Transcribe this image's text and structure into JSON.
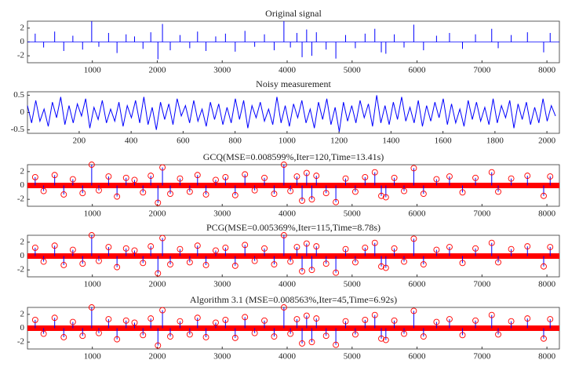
{
  "chart_data": [
    {
      "type": "stem",
      "title": "Original signal",
      "color": "#0000ff",
      "markers": false,
      "xlim": [
        1,
        8192
      ],
      "xticks": [
        1000,
        2000,
        3000,
        4000,
        5000,
        6000,
        7000,
        8000
      ],
      "ylim": [
        -3,
        3
      ],
      "yticks": [
        -2,
        0,
        2
      ],
      "x": [
        120,
        250,
        420,
        560,
        700,
        850,
        990,
        1100,
        1250,
        1380,
        1520,
        1650,
        1780,
        1900,
        2010,
        2080,
        2200,
        2350,
        2500,
        2620,
        2750,
        2900,
        3050,
        3200,
        3350,
        3500,
        3650,
        3800,
        3950,
        4050,
        4150,
        4230,
        4300,
        4380,
        4450,
        4600,
        4750,
        4900,
        5050,
        5200,
        5350,
        5450,
        5520,
        5650,
        5800,
        5950,
        6100,
        6300,
        6500,
        6700,
        6900,
        7150,
        7250,
        7450,
        7700,
        7950,
        8050
      ],
      "values": [
        1.2,
        -0.8,
        1.5,
        -1.3,
        0.9,
        -1.1,
        3.0,
        -0.7,
        1.3,
        -1.6,
        1.1,
        0.8,
        -1.0,
        1.4,
        -2.5,
        2.6,
        -1.2,
        1.0,
        -0.9,
        1.5,
        -1.3,
        0.8,
        1.2,
        -1.4,
        1.6,
        -0.7,
        1.1,
        -1.2,
        3.0,
        -0.8,
        1.3,
        -2.2,
        1.8,
        -2.0,
        1.4,
        -1.1,
        -2.4,
        1.0,
        -0.9,
        1.2,
        1.9,
        -1.5,
        -1.7,
        1.1,
        -0.8,
        2.5,
        -1.2,
        0.9,
        1.3,
        -1.0,
        1.1,
        1.9,
        -0.9,
        1.0,
        1.4,
        -1.5,
        1.3
      ]
    },
    {
      "type": "line",
      "title": "Noisy measurement",
      "color": "#0000ff",
      "xlim": [
        1,
        2048
      ],
      "xticks": [
        200,
        400,
        600,
        800,
        1000,
        1200,
        1400,
        1600,
        1800,
        2000
      ],
      "ylim": [
        -0.6,
        0.6
      ],
      "yticks": [
        -0.5,
        0,
        0.5
      ],
      "x": [
        1,
        17,
        33,
        49,
        65,
        81,
        97,
        113,
        129,
        145,
        161,
        177,
        193,
        209,
        225,
        241,
        257,
        273,
        289,
        305,
        321,
        337,
        353,
        369,
        385,
        401,
        417,
        433,
        449,
        465,
        481,
        497,
        513,
        529,
        545,
        561,
        577,
        593,
        609,
        625,
        641,
        657,
        673,
        689,
        705,
        721,
        737,
        753,
        769,
        785,
        801,
        817,
        833,
        849,
        865,
        881,
        897,
        913,
        929,
        945,
        961,
        977,
        993,
        1009,
        1025,
        1041,
        1057,
        1073,
        1089,
        1105,
        1121,
        1137,
        1153,
        1169,
        1185,
        1201,
        1217,
        1233,
        1249,
        1265,
        1281,
        1297,
        1313,
        1329,
        1345,
        1361,
        1377,
        1393,
        1409,
        1425,
        1441,
        1457,
        1473,
        1489,
        1505,
        1521,
        1537,
        1553,
        1569,
        1585,
        1601,
        1617,
        1633,
        1649,
        1665,
        1681,
        1697,
        1713,
        1729,
        1745,
        1761,
        1777,
        1793,
        1809,
        1825,
        1841,
        1857,
        1873,
        1889,
        1905,
        1921,
        1937,
        1953,
        1969,
        1985,
        2001,
        2017,
        2033
      ],
      "values": [
        0.2,
        -0.3,
        0.35,
        -0.25,
        0.1,
        -0.4,
        0.3,
        -0.15,
        0.45,
        -0.35,
        0.2,
        -0.3,
        0.25,
        -0.1,
        0.4,
        -0.45,
        0.15,
        -0.2,
        0.35,
        -0.3,
        0.1,
        -0.25,
        0.3,
        -0.4,
        0.2,
        -0.15,
        0.35,
        -0.3,
        0.45,
        -0.35,
        0.15,
        -0.5,
        0.3,
        -0.2,
        0.25,
        -0.35,
        0.4,
        -0.1,
        0.2,
        -0.3,
        0.35,
        -0.25,
        0.1,
        -0.4,
        0.3,
        -0.2,
        0.25,
        -0.35,
        0.15,
        -0.3,
        0.4,
        -0.2,
        0.35,
        -0.45,
        0.2,
        -0.15,
        0.3,
        -0.25,
        0.1,
        -0.35,
        0.45,
        -0.3,
        0.2,
        -0.4,
        0.25,
        -0.15,
        0.35,
        -0.3,
        0.1,
        -0.45,
        0.3,
        -0.2,
        0.4,
        -0.35,
        0.15,
        -0.55,
        0.3,
        -0.25,
        0.2,
        -0.3,
        0.35,
        -0.15,
        0.25,
        -0.4,
        0.5,
        -0.3,
        0.2,
        -0.35,
        0.3,
        -0.2,
        0.45,
        -0.25,
        0.15,
        -0.3,
        0.35,
        -0.4,
        0.2,
        -0.25,
        0.3,
        -0.15,
        0.4,
        -0.35,
        0.25,
        -0.3,
        0.1,
        -0.4,
        0.35,
        -0.2,
        0.3,
        -0.25,
        0.15,
        -0.35,
        0.4,
        -0.3,
        0.2,
        -0.15,
        0.35,
        -0.45,
        0.25,
        -0.2,
        0.3,
        -0.35,
        0.15,
        -0.3,
        0.4,
        -0.25,
        0.2,
        -0.1
      ]
    },
    {
      "type": "stem",
      "title": "GCQ(MSE=0.008599%,Iter=120,Time=13.41s)",
      "color": "#0000ff",
      "marker_color": "#ff0000",
      "markers": true,
      "xlim": [
        1,
        8192
      ],
      "xticks": [
        1000,
        2000,
        3000,
        4000,
        5000,
        6000,
        7000,
        8000
      ],
      "ylim": [
        -3,
        3
      ],
      "yticks": [
        -2,
        0,
        2
      ],
      "x": [
        120,
        250,
        420,
        560,
        700,
        850,
        990,
        1100,
        1250,
        1380,
        1520,
        1650,
        1780,
        1900,
        2010,
        2080,
        2200,
        2350,
        2500,
        2620,
        2750,
        2900,
        3050,
        3200,
        3350,
        3500,
        3650,
        3800,
        3950,
        4050,
        4150,
        4230,
        4300,
        4380,
        4450,
        4600,
        4750,
        4900,
        5050,
        5200,
        5350,
        5450,
        5520,
        5650,
        5800,
        5950,
        6100,
        6300,
        6500,
        6700,
        6900,
        7150,
        7250,
        7450,
        7700,
        7950,
        8050
      ],
      "values": [
        1.2,
        -0.8,
        1.5,
        -1.3,
        0.9,
        -1.1,
        3.0,
        -0.7,
        1.3,
        -1.6,
        1.1,
        0.8,
        -1.0,
        1.4,
        -2.5,
        2.6,
        -1.2,
        1.0,
        -0.9,
        1.5,
        -1.3,
        0.8,
        1.2,
        -1.4,
        1.6,
        -0.7,
        1.1,
        -1.2,
        3.0,
        -0.8,
        1.3,
        -2.2,
        1.8,
        -2.0,
        1.4,
        -1.1,
        -2.4,
        1.0,
        -0.9,
        1.2,
        1.9,
        -1.5,
        -1.7,
        1.1,
        -0.8,
        2.5,
        -1.2,
        0.9,
        1.3,
        -1.0,
        1.1,
        1.9,
        -0.9,
        1.0,
        1.4,
        -1.5,
        1.3
      ]
    },
    {
      "type": "stem",
      "title": "PCG(MSE=0.005369%,Iter=115,Time=8.78s)",
      "color": "#0000ff",
      "marker_color": "#ff0000",
      "markers": true,
      "xlim": [
        1,
        8192
      ],
      "xticks": [
        1000,
        2000,
        3000,
        4000,
        5000,
        6000,
        7000,
        8000
      ],
      "ylim": [
        -3,
        3
      ],
      "yticks": [
        -2,
        0,
        2
      ],
      "x": [
        120,
        250,
        420,
        560,
        700,
        850,
        990,
        1100,
        1250,
        1380,
        1520,
        1650,
        1780,
        1900,
        2010,
        2080,
        2200,
        2350,
        2500,
        2620,
        2750,
        2900,
        3050,
        3200,
        3350,
        3500,
        3650,
        3800,
        3950,
        4050,
        4150,
        4230,
        4300,
        4380,
        4450,
        4600,
        4750,
        4900,
        5050,
        5200,
        5350,
        5450,
        5520,
        5650,
        5800,
        5950,
        6100,
        6300,
        6500,
        6700,
        6900,
        7150,
        7250,
        7450,
        7700,
        7950,
        8050
      ],
      "values": [
        1.2,
        -0.8,
        1.5,
        -1.3,
        0.9,
        -1.1,
        3.0,
        -0.7,
        1.3,
        -1.6,
        1.1,
        0.8,
        -1.0,
        1.4,
        -2.5,
        2.6,
        -1.2,
        1.0,
        -0.9,
        1.5,
        -1.3,
        0.8,
        1.2,
        -1.4,
        1.6,
        -0.7,
        1.1,
        -1.2,
        3.0,
        -0.8,
        1.3,
        -2.2,
        1.8,
        -2.0,
        1.4,
        -1.1,
        -2.4,
        1.0,
        -0.9,
        1.2,
        1.9,
        -1.5,
        -1.7,
        1.1,
        -0.8,
        2.5,
        -1.2,
        0.9,
        1.3,
        -1.0,
        1.1,
        1.9,
        -0.9,
        1.0,
        1.4,
        -1.5,
        1.3
      ]
    },
    {
      "type": "stem",
      "title": "Algorithm 3.1 (MSE=0.008563%,Iter=45,Time=6.92s)",
      "color": "#0000ff",
      "marker_color": "#ff0000",
      "markers": true,
      "xlim": [
        1,
        8192
      ],
      "xticks": [
        1000,
        2000,
        3000,
        4000,
        5000,
        6000,
        7000,
        8000
      ],
      "ylim": [
        -3,
        3
      ],
      "yticks": [
        -2,
        0,
        2
      ],
      "x": [
        120,
        250,
        420,
        560,
        700,
        850,
        990,
        1100,
        1250,
        1380,
        1520,
        1650,
        1780,
        1900,
        2010,
        2080,
        2200,
        2350,
        2500,
        2620,
        2750,
        2900,
        3050,
        3200,
        3350,
        3500,
        3650,
        3800,
        3950,
        4050,
        4150,
        4230,
        4300,
        4380,
        4450,
        4600,
        4750,
        4900,
        5050,
        5200,
        5350,
        5450,
        5520,
        5650,
        5800,
        5950,
        6100,
        6300,
        6500,
        6700,
        6900,
        7150,
        7250,
        7450,
        7700,
        7950,
        8050
      ],
      "values": [
        1.2,
        -0.8,
        1.5,
        -1.3,
        0.9,
        -1.1,
        3.0,
        -0.7,
        1.3,
        -1.6,
        1.1,
        0.8,
        -1.0,
        1.4,
        -2.5,
        2.6,
        -1.2,
        1.0,
        -0.9,
        1.5,
        -1.3,
        0.8,
        1.2,
        -1.4,
        1.6,
        -0.7,
        1.1,
        -1.2,
        3.0,
        -0.8,
        1.3,
        -2.2,
        1.8,
        -2.0,
        1.4,
        -1.1,
        -2.4,
        1.0,
        -0.9,
        1.2,
        1.9,
        -1.5,
        -1.7,
        1.1,
        -0.8,
        2.5,
        -1.2,
        0.9,
        1.3,
        -1.0,
        1.1,
        1.9,
        -0.9,
        1.0,
        1.4,
        -1.5,
        1.3
      ]
    }
  ]
}
